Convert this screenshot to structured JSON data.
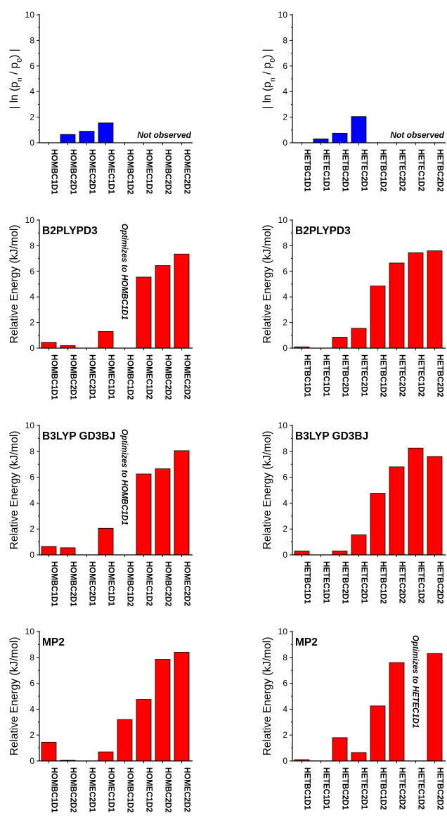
{
  "figure": {
    "colors": {
      "blue": "#0000ff",
      "red": "#ff0000",
      "axis": "#000000"
    },
    "yticks": [
      "0",
      "2",
      "4",
      "6",
      "8",
      "10"
    ]
  },
  "chart_data": [
    {
      "type": "bar",
      "ylabel_parts": [
        "| ln (p",
        "n",
        " / p",
        "0",
        ") |"
      ],
      "ylim": [
        0,
        10
      ],
      "color": "#0000ff",
      "categories": [
        "HOMBC1D1",
        "HOMBC2D1",
        "HOMEC2D1",
        "HOMEC1D1",
        "HOMBC1D2",
        "HOMEC1D2",
        "HOMBC2D2",
        "HOMEC2D2"
      ],
      "values": [
        0,
        0.65,
        0.9,
        1.55,
        null,
        null,
        null,
        null
      ],
      "note": "Not observed"
    },
    {
      "type": "bar",
      "ylabel_parts": [
        "| ln (p",
        "n",
        " / p",
        "0",
        ") |"
      ],
      "ylim": [
        0,
        10
      ],
      "color": "#0000ff",
      "categories": [
        "HETBC1D1",
        "HETEC1D1",
        "HETBC2D1",
        "HETEC2D1",
        "HETBC1D2",
        "HETEC2D2",
        "HETEC1D2",
        "HETBC2D2"
      ],
      "values": [
        0,
        0.3,
        0.75,
        2.05,
        null,
        null,
        null,
        null
      ],
      "note": "Not observed"
    },
    {
      "type": "bar",
      "title": "B2PLYPD3",
      "ylabel": "Relative Energy (kJ/mol)",
      "ylim": [
        0,
        10
      ],
      "color": "#ff0000",
      "categories": [
        "HOMBC1D1",
        "HOMBC2D1",
        "HOMEC2D1",
        "HOMEC1D1",
        "HOMBC1D2",
        "HOMEC1D2",
        "HOMBC2D2",
        "HOMEC2D2"
      ],
      "values": [
        0.45,
        0.2,
        0,
        1.3,
        null,
        5.55,
        6.45,
        7.35
      ],
      "annotation": {
        "category": "HOMBC1D2",
        "text": "Optimizes to HOMBC1D1"
      }
    },
    {
      "type": "bar",
      "title": "B2PLYPD3",
      "ylabel": "Relative Energy (kJ/mol)",
      "ylim": [
        0,
        10
      ],
      "color": "#ff0000",
      "categories": [
        "HETBC1D1",
        "HETEC1D1",
        "HETBC2D1",
        "HETEC2D1",
        "HETBC1D2",
        "HETEC2D2",
        "HETEC1D2",
        "HETBC2D2"
      ],
      "values": [
        0.1,
        0,
        0.85,
        1.55,
        4.85,
        6.65,
        7.45,
        7.6
      ]
    },
    {
      "type": "bar",
      "title": "B3LYP GD3BJ",
      "ylabel": "Relative Energy (kJ/mol)",
      "ylim": [
        0,
        10
      ],
      "color": "#ff0000",
      "categories": [
        "HOMBC1D1",
        "HOMBC2D1",
        "HOMEC2D1",
        "HOMEC1D1",
        "HOMBC1D2",
        "HOMEC1D2",
        "HOMBC2D2",
        "HOMEC2D2"
      ],
      "values": [
        0.65,
        0.55,
        0,
        2.05,
        null,
        6.25,
        6.65,
        8.05
      ],
      "annotation": {
        "category": "HOMBC1D2",
        "text": "Optimizes to HOMBC1D1"
      }
    },
    {
      "type": "bar",
      "title": "B3LYP GD3BJ",
      "ylabel": "Relative Energy (kJ/mol)",
      "ylim": [
        0,
        10
      ],
      "color": "#ff0000",
      "categories": [
        "HETBC1D1",
        "HETEC1D1",
        "HETBC2D1",
        "HETEC2D1",
        "HETBC1D2",
        "HETEC2D2",
        "HETEC1D2",
        "HETBC2D2"
      ],
      "values": [
        0.3,
        0,
        0.3,
        1.55,
        4.75,
        6.8,
        8.25,
        7.6
      ]
    },
    {
      "type": "bar",
      "title": "MP2",
      "ylabel": "Relative Energy (kJ/mol)",
      "ylim": [
        0,
        10
      ],
      "color": "#ff0000",
      "categories": [
        "HOMBC1D1",
        "HOMBC2D2",
        "HOMEC2D1",
        "HOMEC1D1",
        "HOMBC1D2",
        "HOMEC1D2",
        "HOMBC2D2",
        "HOMEC2D2"
      ],
      "values": [
        1.45,
        0.05,
        0,
        0.7,
        3.2,
        4.75,
        7.85,
        8.4
      ]
    },
    {
      "type": "bar",
      "title": "MP2",
      "ylabel": "Relative Energy (kJ/mol)",
      "ylim": [
        0,
        10
      ],
      "color": "#ff0000",
      "categories": [
        "HETBC1D1",
        "HETEC1D1",
        "HETBC2D1",
        "HETEC2D1",
        "HETBC1D2",
        "HETEC2D2",
        "HETEC1D2",
        "HETBC2D2"
      ],
      "values": [
        0.1,
        0,
        1.8,
        0.65,
        4.25,
        7.6,
        null,
        8.3
      ],
      "annotation": {
        "category": "HETEC1D2",
        "text": "Optimizes to HETEC1D1"
      }
    }
  ]
}
